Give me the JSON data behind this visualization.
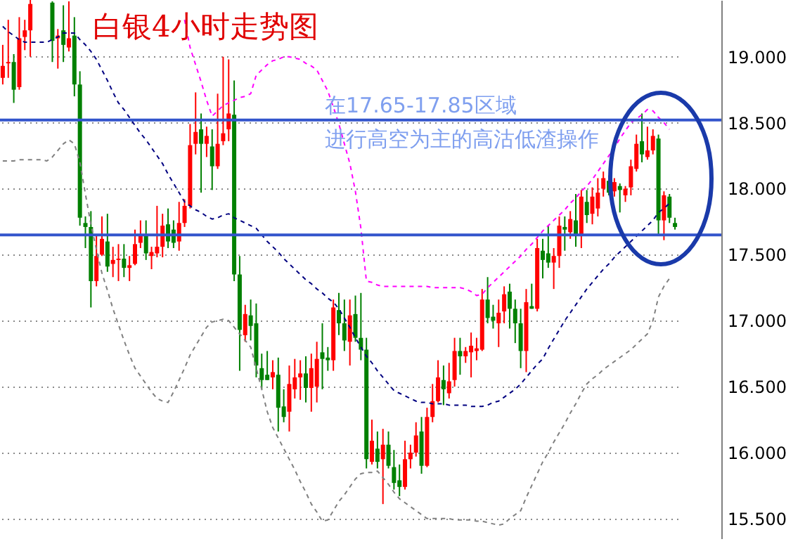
{
  "chart_data": {
    "type": "candlestick",
    "title": "白银4小时走势图",
    "annotations": [
      "在17.65-17.85区域",
      "进行高空为主的高沽低渣操作"
    ],
    "categories": [
      null,
      null,
      null,
      null,
      null,
      null,
      null,
      null,
      null,
      null,
      null,
      null,
      null,
      null,
      null,
      null,
      null,
      null,
      null,
      null,
      null,
      null,
      null,
      null,
      null,
      null,
      null,
      null,
      null,
      null,
      null,
      null,
      null,
      null,
      null,
      null,
      null,
      null,
      null,
      null,
      null,
      null,
      null,
      null,
      null,
      null,
      null,
      null,
      null,
      null,
      null,
      null,
      null,
      null,
      null,
      null,
      null,
      null,
      null,
      null,
      null,
      null,
      null,
      null,
      null,
      null,
      null,
      null,
      null,
      null,
      null,
      null,
      null,
      null,
      null,
      null,
      null,
      null,
      null,
      null,
      null,
      null,
      null,
      null,
      null,
      null,
      null,
      null,
      null,
      null,
      null,
      null,
      null,
      null,
      null,
      null,
      null,
      null,
      null,
      null,
      null,
      null,
      null,
      null,
      null,
      null,
      null,
      null,
      null,
      null,
      null,
      null,
      null,
      null,
      null,
      null,
      null,
      null,
      null,
      null,
      null,
      null,
      null
    ],
    "ylim": [
      15.35,
      19.43
    ],
    "yticks": [
      {
        "value": 15.5,
        "label": "15.500"
      },
      {
        "value": 16,
        "label": "16.000"
      },
      {
        "value": 16.5,
        "label": "16.500"
      },
      {
        "value": 17,
        "label": "17.000"
      },
      {
        "value": 17.5,
        "label": "17.500"
      },
      {
        "value": 18,
        "label": "18.000"
      },
      {
        "value": 18.5,
        "label": "18.500"
      },
      {
        "value": 19,
        "label": "19.000"
      }
    ],
    "tick_labels": "y",
    "grid": "y",
    "ref_lines": [
      {
        "axis": "y",
        "value": 18.52,
        "color": "#3355cc"
      },
      {
        "axis": "y",
        "value": 17.65,
        "color": "#3355cc"
      }
    ],
    "series": [
      {
        "colors": [
          "#ff0000",
          "#ff0000",
          "#008000",
          "#ff0000",
          "#ff0000",
          "#ff0000",
          null,
          null,
          null,
          "#008000",
          "#ff0000",
          "#008000",
          "#ff0000",
          "#008000",
          "#008000",
          "#008000",
          "#008000",
          "#ff0000",
          "#ff0000",
          "#008000",
          "#ff0000",
          "#ff0000",
          "#008000",
          "#ff0000",
          "#ff0000",
          "#ff0000",
          "#008000",
          "#ff0000",
          "#ff0000",
          "#ff0000",
          "#008000",
          "#008000",
          "#ff0000",
          "#ff0000",
          "#ff0000",
          "#ff0000",
          "#008000",
          "#ff0000",
          "#008000",
          "#ff0000",
          "#ff0000",
          "#ff0000",
          "#008000",
          "#008000",
          "#ff0000",
          "#008000",
          "#008000",
          "#008000",
          "#008000",
          "#ff0000",
          "#008000",
          "#008000",
          "#ff0000",
          "#ff0000",
          "#ff0000",
          "#008000",
          "#ff0000",
          "#ff0000",
          "#008000",
          "#008000",
          "#ff0000",
          "#008000",
          "#008000",
          "#ff0000",
          "#008000",
          "#008000",
          "#008000",
          "#ff0000",
          "#008000",
          "#ff0000",
          "#008000",
          "#008000",
          "#008000",
          "#ff0000",
          "#ff0000",
          "#ff0000",
          "#008000",
          "#ff0000",
          "#ff0000",
          "#ff0000",
          "#008000",
          "#ff0000",
          "#ff0000",
          "#008000",
          "#ff0000",
          "#ff0000",
          "#ff0000",
          "#ff0000",
          "#008000",
          "#008000",
          "#ff0000",
          "#ff0000",
          "#008000",
          "#008000",
          "#008000",
          "#ff0000",
          "#008000",
          "#ff0000",
          "#008000",
          "#008000",
          "#ff0000",
          "#ff0000",
          "#008000",
          "#ff0000",
          "#008000",
          "#ff0000",
          "#008000",
          "#ff0000",
          "#ff0000",
          "#ff0000",
          "#008000",
          "#ff0000",
          "#008000",
          "#ff0000",
          "#ff0000",
          "#ff0000",
          "#008000",
          "#ff0000",
          "#ff0000",
          "#008000",
          "#ff0000",
          "#008000",
          "#008000"
        ],
        "ohlc": [
          [
            18.84,
            19.09,
            18.79,
            18.93
          ],
          [
            18.95,
            19.28,
            18.84,
            18.96
          ],
          [
            18.96,
            19.02,
            18.65,
            18.75
          ],
          [
            18.77,
            19.3,
            18.75,
            19.14
          ],
          [
            19.15,
            19.28,
            19.05,
            19.2
          ],
          [
            19.2,
            19.43,
            19.0,
            19.4
          ],
          null,
          null,
          null,
          [
            19.41,
            19.42,
            18.96,
            19.12
          ],
          [
            19.14,
            19.21,
            18.91,
            19.16
          ],
          [
            19.2,
            19.39,
            18.96,
            19.09
          ],
          [
            19.07,
            19.42,
            19.04,
            19.14
          ],
          [
            19.16,
            19.3,
            18.7,
            18.79
          ],
          [
            18.79,
            18.89,
            17.72,
            17.78
          ],
          [
            17.74,
            17.79,
            17.55,
            17.71
          ],
          [
            17.71,
            17.83,
            17.1,
            17.3
          ],
          [
            17.3,
            17.65,
            17.26,
            17.49
          ],
          [
            17.5,
            17.79,
            17.49,
            17.62
          ],
          [
            17.6,
            17.81,
            17.37,
            17.41
          ],
          [
            17.43,
            17.56,
            17.33,
            17.46
          ],
          [
            17.46,
            17.58,
            17.3,
            17.47
          ],
          [
            17.47,
            17.58,
            17.33,
            17.4
          ],
          [
            17.4,
            17.49,
            17.3,
            17.42
          ],
          [
            17.43,
            17.69,
            17.42,
            17.58
          ],
          [
            17.59,
            17.76,
            17.55,
            17.65
          ],
          [
            17.65,
            17.76,
            17.46,
            17.51
          ],
          [
            17.49,
            17.56,
            17.39,
            17.52
          ],
          [
            17.51,
            17.87,
            17.48,
            17.56
          ],
          [
            17.56,
            17.81,
            17.48,
            17.72
          ],
          [
            17.73,
            17.85,
            17.55,
            17.6
          ],
          [
            17.69,
            17.76,
            17.55,
            17.59
          ],
          [
            17.6,
            17.9,
            17.53,
            17.74
          ],
          [
            17.74,
            17.92,
            17.71,
            17.87
          ],
          [
            17.87,
            18.49,
            17.85,
            18.33
          ],
          [
            18.34,
            18.73,
            18.26,
            18.43
          ],
          [
            18.45,
            18.57,
            17.97,
            18.34
          ],
          [
            18.34,
            18.47,
            18.24,
            18.4
          ],
          [
            18.32,
            18.45,
            17.99,
            18.17
          ],
          [
            18.17,
            18.72,
            18.15,
            18.34
          ],
          [
            18.36,
            19.0,
            18.33,
            18.42
          ],
          [
            18.45,
            18.98,
            18.36,
            18.57
          ],
          [
            18.56,
            18.82,
            17.3,
            17.35
          ],
          [
            17.35,
            17.49,
            16.62,
            16.93
          ],
          [
            16.89,
            17.12,
            16.84,
            17.05
          ],
          [
            17.04,
            17.16,
            16.85,
            16.96
          ],
          [
            16.98,
            17.13,
            16.57,
            16.66
          ],
          [
            16.64,
            16.75,
            16.48,
            16.55
          ],
          [
            16.59,
            16.77,
            16.55,
            16.55
          ],
          [
            16.57,
            16.7,
            16.48,
            16.61
          ],
          [
            16.59,
            16.72,
            16.16,
            16.34
          ],
          [
            16.35,
            16.48,
            16.23,
            16.27
          ],
          [
            16.31,
            16.66,
            16.16,
            16.52
          ],
          [
            16.48,
            16.71,
            16.41,
            16.57
          ],
          [
            16.57,
            16.7,
            16.4,
            16.6
          ],
          [
            16.6,
            16.73,
            16.38,
            16.49
          ],
          [
            16.49,
            16.75,
            16.31,
            16.64
          ],
          [
            16.5,
            16.84,
            16.38,
            16.71
          ],
          [
            16.76,
            16.98,
            16.48,
            16.71
          ],
          [
            16.72,
            16.8,
            16.62,
            16.7
          ],
          [
            16.7,
            17.16,
            16.62,
            17.1
          ],
          [
            17.08,
            17.21,
            16.89,
            16.98
          ],
          [
            16.98,
            17.16,
            16.77,
            16.85
          ],
          [
            16.84,
            17.16,
            16.66,
            17.04
          ],
          [
            17.05,
            17.19,
            16.84,
            16.87
          ],
          [
            16.87,
            17.21,
            16.7,
            16.78
          ],
          [
            16.78,
            16.87,
            15.88,
            15.95
          ],
          [
            15.93,
            16.25,
            15.91,
            16.09
          ],
          [
            16.03,
            16.16,
            15.88,
            15.93
          ],
          [
            15.95,
            16.18,
            15.61,
            16.06
          ],
          [
            16.06,
            16.16,
            15.88,
            15.9
          ],
          [
            15.89,
            16.02,
            15.72,
            15.77
          ],
          [
            15.79,
            15.91,
            15.67,
            15.74
          ],
          [
            15.74,
            16.09,
            15.72,
            15.95
          ],
          [
            15.95,
            16.06,
            15.88,
            16.0
          ],
          [
            16.0,
            16.23,
            15.97,
            16.13
          ],
          [
            16.16,
            16.27,
            15.84,
            15.9
          ],
          [
            15.9,
            16.34,
            15.89,
            16.27
          ],
          [
            16.27,
            16.52,
            16.23,
            16.39
          ],
          [
            16.39,
            16.7,
            16.38,
            16.57
          ],
          [
            16.55,
            16.66,
            16.36,
            16.48
          ],
          [
            16.45,
            16.68,
            16.41,
            16.54
          ],
          [
            16.55,
            16.87,
            16.5,
            16.77
          ],
          [
            16.77,
            16.87,
            16.59,
            16.73
          ],
          [
            16.73,
            16.8,
            16.68,
            16.77
          ],
          [
            16.76,
            16.91,
            16.57,
            16.81
          ],
          [
            16.77,
            16.87,
            16.7,
            16.79
          ],
          [
            16.78,
            17.24,
            16.77,
            17.16
          ],
          [
            17.16,
            17.33,
            16.98,
            17.02
          ],
          [
            17.03,
            17.12,
            16.94,
            17.0
          ],
          [
            16.98,
            17.16,
            16.8,
            17.06
          ],
          [
            17.07,
            17.26,
            16.98,
            17.2
          ],
          [
            17.22,
            17.28,
            16.94,
            17.09
          ],
          [
            17.09,
            17.16,
            16.83,
            16.98
          ],
          [
            16.98,
            17.09,
            16.64,
            16.77
          ],
          [
            16.77,
            17.24,
            16.61,
            17.14
          ],
          [
            17.11,
            17.28,
            17.09,
            17.09
          ],
          [
            17.09,
            17.62,
            17.07,
            17.55
          ],
          [
            17.53,
            17.62,
            17.32,
            17.46
          ],
          [
            17.51,
            17.72,
            17.4,
            17.44
          ],
          [
            17.44,
            17.55,
            17.24,
            17.49
          ],
          [
            17.49,
            17.79,
            17.4,
            17.72
          ],
          [
            17.71,
            17.79,
            17.53,
            17.69
          ],
          [
            17.67,
            17.83,
            17.62,
            17.77
          ],
          [
            17.76,
            17.96,
            17.56,
            17.65
          ],
          [
            17.64,
            17.99,
            17.55,
            17.94
          ],
          [
            17.9,
            17.99,
            17.74,
            17.8
          ],
          [
            17.81,
            18.01,
            17.73,
            17.94
          ],
          [
            17.85,
            18.08,
            17.79,
            17.97
          ],
          [
            18.0,
            18.13,
            17.94,
            18.08
          ],
          [
            18.06,
            18.1,
            17.95,
            17.97
          ],
          [
            17.98,
            18.08,
            17.94,
            18.05
          ],
          [
            18.02,
            18.04,
            17.82,
            17.99
          ],
          [
            17.95,
            18.02,
            17.9,
            18.0
          ],
          [
            18.01,
            18.22,
            17.95,
            18.17
          ],
          [
            18.15,
            18.41,
            18.13,
            18.34
          ],
          [
            18.36,
            18.57,
            18.2,
            18.26
          ],
          [
            18.24,
            18.47,
            18.22,
            18.29
          ],
          [
            18.29,
            18.45,
            18.26,
            18.4
          ],
          [
            18.38,
            18.41,
            17.65,
            17.76
          ],
          [
            17.76,
            17.98,
            17.61,
            17.95
          ],
          [
            17.94,
            17.96,
            17.74,
            17.78
          ],
          [
            17.74,
            17.78,
            17.69,
            17.71
          ]
        ]
      },
      {
        "type": "line",
        "color": "#ff00ff",
        "line_style": "dashed",
        "values": [
          null,
          null,
          null,
          null,
          null,
          null,
          null,
          null,
          null,
          null,
          null,
          null,
          null,
          null,
          null,
          null,
          null,
          null,
          null,
          null,
          null,
          null,
          null,
          null,
          null,
          null,
          null,
          null,
          null,
          null,
          null,
          null,
          null,
          19.28,
          19.07,
          18.94,
          18.81,
          18.67,
          18.55,
          18.59,
          18.63,
          18.65,
          18.67,
          18.69,
          18.7,
          18.72,
          18.86,
          18.9,
          18.94,
          18.97,
          18.98,
          19.0,
          19.0,
          18.99,
          18.98,
          18.95,
          18.93,
          18.9,
          18.82,
          18.74,
          18.62,
          18.49,
          18.34,
          18.19,
          17.98,
          17.7,
          17.3,
          17.29,
          17.27,
          17.26,
          17.26,
          17.26,
          17.26,
          17.26,
          17.26,
          17.26,
          17.26,
          17.26,
          17.25,
          17.25,
          17.25,
          17.25,
          17.25,
          17.25,
          17.24,
          17.22,
          17.19,
          17.2,
          17.25,
          17.29,
          17.33,
          17.37,
          17.41,
          17.45,
          17.49,
          17.54,
          17.58,
          17.63,
          17.68,
          17.72,
          17.76,
          17.8,
          17.84,
          17.89,
          17.93,
          17.98,
          18.02,
          18.07,
          18.13,
          18.19,
          18.25,
          18.31,
          18.38,
          18.44,
          18.5,
          18.53,
          18.56,
          18.6,
          18.59,
          18.54,
          18.5,
          18.45,
          null
        ]
      },
      {
        "type": "line",
        "color": "#000080",
        "line_style": "dashed",
        "values": [
          19.23,
          19.19,
          19.16,
          19.13,
          19.11,
          19.11,
          19.11,
          19.11,
          19.11,
          19.13,
          19.15,
          19.18,
          19.18,
          19.18,
          19.13,
          19.09,
          19.04,
          18.98,
          18.9,
          18.82,
          18.73,
          18.65,
          18.6,
          18.54,
          18.48,
          18.42,
          18.37,
          18.31,
          18.25,
          18.19,
          18.11,
          18.04,
          17.97,
          17.9,
          17.87,
          17.84,
          17.82,
          17.79,
          17.77,
          17.78,
          17.8,
          17.81,
          17.78,
          17.76,
          17.74,
          17.72,
          17.7,
          17.65,
          17.6,
          17.56,
          17.52,
          17.47,
          17.43,
          17.39,
          17.35,
          17.31,
          17.28,
          17.24,
          17.21,
          17.17,
          17.14,
          17.09,
          17.02,
          16.95,
          16.87,
          16.8,
          16.73,
          16.68,
          16.62,
          16.57,
          16.52,
          16.47,
          16.45,
          16.43,
          16.41,
          16.39,
          16.38,
          16.38,
          16.37,
          16.37,
          16.37,
          16.36,
          16.36,
          16.36,
          16.36,
          16.35,
          16.35,
          16.35,
          16.36,
          16.38,
          16.39,
          16.42,
          16.45,
          16.48,
          16.52,
          16.57,
          16.62,
          16.67,
          16.71,
          16.79,
          16.86,
          16.93,
          17.0,
          17.06,
          17.12,
          17.18,
          17.24,
          17.29,
          17.34,
          17.39,
          17.43,
          17.48,
          17.52,
          17.56,
          17.6,
          17.64,
          17.68,
          17.72,
          17.76,
          17.82,
          17.85,
          17.89,
          null
        ]
      },
      {
        "type": "line",
        "color": "#808080",
        "line_style": "dashed",
        "values": [
          18.21,
          18.21,
          18.21,
          18.22,
          18.22,
          18.22,
          18.22,
          18.22,
          18.21,
          18.24,
          18.29,
          18.34,
          18.37,
          18.34,
          18.2,
          17.96,
          17.73,
          17.54,
          17.36,
          17.23,
          17.09,
          16.97,
          16.85,
          16.74,
          16.64,
          16.58,
          16.52,
          16.46,
          16.41,
          16.39,
          16.38,
          16.46,
          16.55,
          16.64,
          16.74,
          16.81,
          16.88,
          16.95,
          16.99,
          17.0,
          17.01,
          17.0,
          16.95,
          16.9,
          16.85,
          16.8,
          16.64,
          16.48,
          16.31,
          16.19,
          16.11,
          16.03,
          15.95,
          15.87,
          15.78,
          15.7,
          15.61,
          15.55,
          15.48,
          15.49,
          15.56,
          15.63,
          15.68,
          15.74,
          15.8,
          15.84,
          15.85,
          15.85,
          15.86,
          15.81,
          15.76,
          15.7,
          15.65,
          15.62,
          15.59,
          15.56,
          15.53,
          15.5,
          15.5,
          15.5,
          15.5,
          15.5,
          15.49,
          15.49,
          15.49,
          15.49,
          15.48,
          15.48,
          15.47,
          15.46,
          15.45,
          15.46,
          15.5,
          15.53,
          15.56,
          15.66,
          15.75,
          15.84,
          15.93,
          16.0,
          16.08,
          16.15,
          16.22,
          16.3,
          16.37,
          16.45,
          16.52,
          16.56,
          16.59,
          16.63,
          16.66,
          16.69,
          16.72,
          16.75,
          16.78,
          16.82,
          16.86,
          16.9,
          17.0,
          17.18,
          17.26,
          17.32,
          null
        ]
      }
    ]
  }
}
